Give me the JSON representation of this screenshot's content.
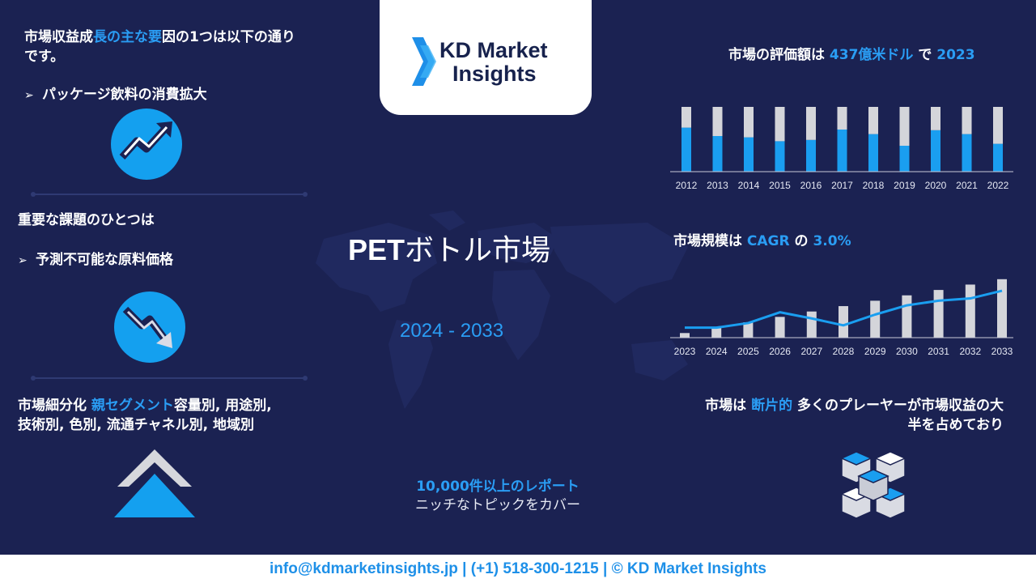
{
  "brand": {
    "logo_line1": "KD Market",
    "logo_line2": "Insights"
  },
  "left": {
    "drivers_heading": {
      "part1": "市場収益成",
      "part2": "長の主な要",
      "part3": "因の1つは以下の通り",
      "part4": "です。"
    },
    "driver_item": "パッケージ飲料の消費拡大",
    "challenge_heading": "重要な課題のひとつは",
    "challenge_item": "予測不可能な原料価格",
    "segmentation": {
      "prefix": "市場細分化 ",
      "highlight": "親セグメント",
      "rest1": "容量別, 用途別,",
      "rest2": "技術別, 色別, 流通チャネル別, 地域別"
    },
    "icons": [
      "trend-up-icon",
      "trend-down-icon",
      "chevron-up-icon"
    ]
  },
  "center": {
    "title_bold": "PET",
    "title_rest": "ボトル市場",
    "years": "2024 - 2033",
    "reports_line1": "10,000件以上のレポート",
    "reports_line2": "ニッチなトピックをカバー"
  },
  "right": {
    "valuation": {
      "part1": "市場の評価額は ",
      "value": "437億米ドル",
      "part2": " で ",
      "year": "2023"
    },
    "cagr": {
      "part1": "市場規模は ",
      "label": "CAGR",
      "part2": " の ",
      "value": "3.0%"
    },
    "fragmented": {
      "part1": "市場は ",
      "highlight": "断片的",
      "part2": " 多くのプレーヤーが市場収益の大",
      "part3": "半を占めており"
    },
    "icons": [
      "cubes-icon"
    ]
  },
  "colors": {
    "background": "#1b2252",
    "accent": "#2a9df4",
    "bar_blue": "#1a9ef0",
    "bar_gray": "#d4d5da"
  },
  "chart_data": [
    {
      "type": "bar",
      "categories": [
        "2012",
        "2013",
        "2014",
        "2015",
        "2016",
        "2017",
        "2018",
        "2019",
        "2020",
        "2021",
        "2022"
      ],
      "series": [
        {
          "values": [
            0.68,
            0.55,
            0.53,
            0.47,
            0.49,
            0.65,
            0.58,
            0.4,
            0.64,
            0.58,
            0.43
          ]
        },
        {
          "values": [
            0.32,
            0.45,
            0.47,
            0.53,
            0.51,
            0.35,
            0.42,
            0.6,
            0.36,
            0.42,
            0.57
          ]
        }
      ],
      "stacked": true,
      "ylim": [
        0,
        1
      ]
    },
    {
      "type": "bar",
      "categories": [
        "2023",
        "2024",
        "2025",
        "2026",
        "2027",
        "2028",
        "2029",
        "2030",
        "2031",
        "2032",
        "2033"
      ],
      "series": [
        {
          "values": [
            6,
            14,
            20,
            27,
            34,
            41,
            48,
            55,
            62,
            69,
            76
          ]
        },
        {
          "values": [
            13,
            13,
            19,
            33,
            25,
            16,
            30,
            42,
            48,
            51,
            61
          ]
        }
      ],
      "ylim": [
        0,
        80
      ]
    }
  ]
}
